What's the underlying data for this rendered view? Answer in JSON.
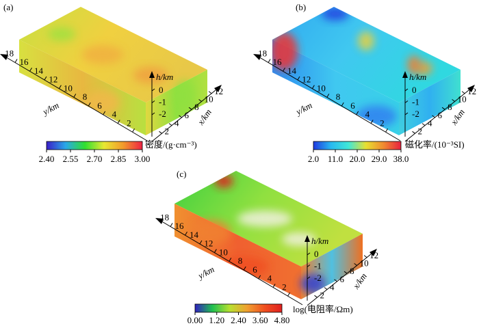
{
  "panels": [
    {
      "label": "(a)",
      "y_axis_label": "y/km",
      "x_axis_label": "x/km",
      "h_axis_label": "h/km",
      "yticks": [
        2,
        4,
        6,
        8,
        10,
        12,
        14,
        16,
        18
      ],
      "ylim": [
        0,
        19.5
      ],
      "xticks": [
        2,
        4,
        6,
        8,
        10,
        12
      ],
      "xlim": [
        0,
        13.5
      ],
      "hticks": [
        0,
        -1,
        -2
      ],
      "hlim": [
        -3,
        1
      ],
      "colorbar": {
        "title": "密度/(g·cm⁻³)",
        "lim": [
          2.4,
          3.0
        ],
        "ticks": [
          {
            "value": 2.4,
            "label": "2.40"
          },
          {
            "value": 2.55,
            "label": "2.55"
          },
          {
            "value": 2.7,
            "label": "2.70"
          },
          {
            "value": 2.85,
            "label": "2.85"
          },
          {
            "value": 3.0,
            "label": "3.00"
          }
        ],
        "colormap": [
          "#3a1fc8",
          "#2aa8e8",
          "#30e030",
          "#e8e832",
          "#f29a2c",
          "#ee2244"
        ]
      }
    },
    {
      "label": "(b)",
      "y_axis_label": "y/km",
      "x_axis_label": "x/km",
      "h_axis_label": "h/km",
      "yticks": [
        2,
        4,
        6,
        8,
        10,
        12,
        14,
        16,
        18
      ],
      "ylim": [
        0,
        19.5
      ],
      "xticks": [
        2,
        4,
        6,
        8,
        10,
        12
      ],
      "xlim": [
        0,
        13.5
      ],
      "hticks": [
        0,
        -1,
        -2
      ],
      "hlim": [
        -3,
        1
      ],
      "colorbar": {
        "title": "磁化率/(10⁻³SI)",
        "lim": [
          2.0,
          38.0
        ],
        "ticks": [
          {
            "value": 2.0,
            "label": "2.0"
          },
          {
            "value": 11.0,
            "label": "11.0"
          },
          {
            "value": 20.0,
            "label": "20.0"
          },
          {
            "value": 29.0,
            "label": "29.0"
          },
          {
            "value": 38.0,
            "label": "38.0"
          }
        ],
        "colormap": [
          "#1f3ae0",
          "#28b8f0",
          "#40e8d8",
          "#e8e030",
          "#f08a30",
          "#e82040"
        ]
      }
    },
    {
      "label": "(c)",
      "y_axis_label": "y/km",
      "x_axis_label": "x/km",
      "h_axis_label": "h/km",
      "yticks": [
        2,
        4,
        6,
        8,
        10,
        12,
        14,
        16,
        18
      ],
      "ylim": [
        0,
        19.5
      ],
      "xticks": [
        2,
        4,
        6,
        8,
        10,
        12
      ],
      "xlim": [
        0,
        13.5
      ],
      "hticks": [
        0,
        -1,
        -2
      ],
      "hlim": [
        -3,
        1
      ],
      "colorbar": {
        "title": "log(电阻率/Ωm)",
        "lim": [
          0.0,
          4.8
        ],
        "ticks": [
          {
            "value": 0.0,
            "label": "0.00"
          },
          {
            "value": 1.2,
            "label": "1.20"
          },
          {
            "value": 2.4,
            "label": "2.40"
          },
          {
            "value": 3.6,
            "label": "3.60"
          },
          {
            "value": 4.8,
            "label": "4.80"
          }
        ],
        "colormap": [
          "#3020c0",
          "#20c050",
          "#b8e030",
          "#f0a030",
          "#f05020",
          "#e02020"
        ]
      }
    }
  ]
}
